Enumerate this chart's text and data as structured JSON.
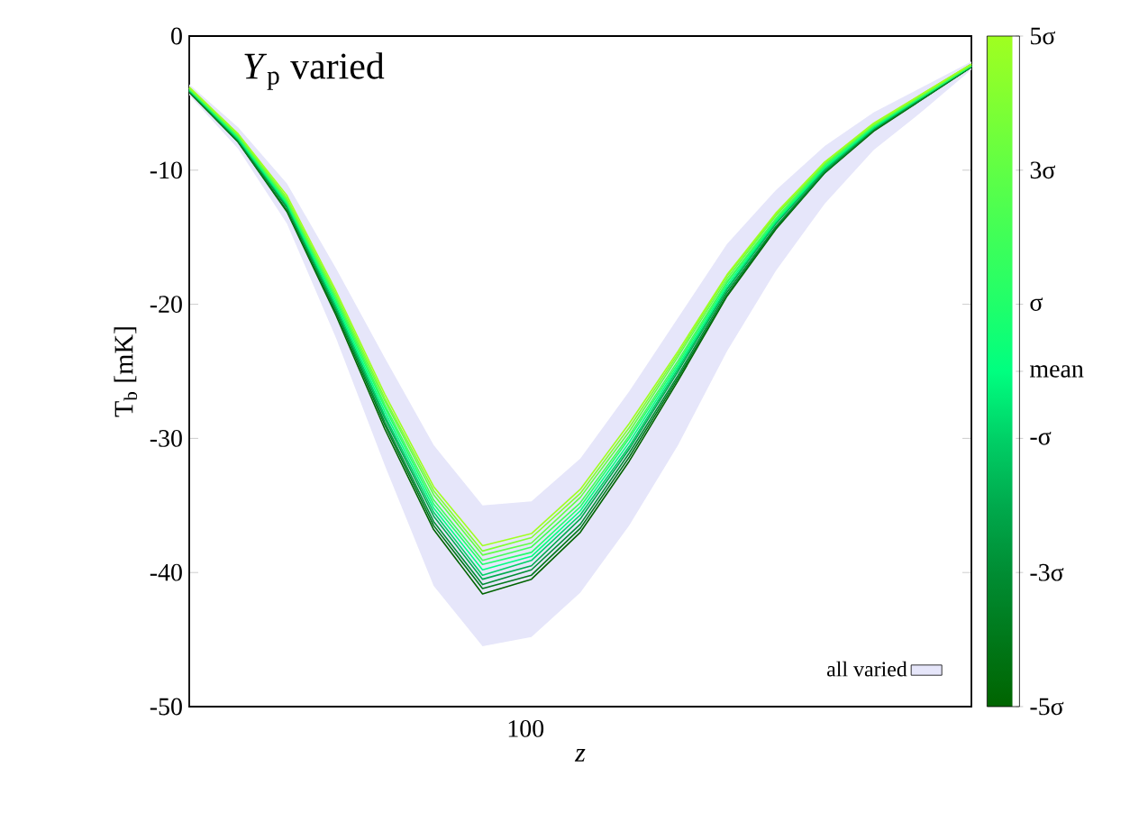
{
  "chart_data": {
    "type": "line",
    "annotations": [
      "*Y*$_{p}$ varied",
      "100"
    ],
    "xlabel": "z",
    "ylabel": "T$_{b}$ [mK]",
    "legend": "bottom right",
    "ylim": [
      -50,
      0
    ],
    "yticks": [
      -50,
      -40,
      -30,
      -20,
      -10,
      0
    ],
    "clim": [
      -5,
      5
    ],
    "cticks": [
      {
        "value": -5,
        "label": "-5σ"
      },
      {
        "value": -3,
        "label": "-3σ"
      },
      {
        "value": -1,
        "label": "-σ"
      },
      {
        "value": 0,
        "label": "mean"
      },
      {
        "value": 1,
        "label": "σ"
      },
      {
        "value": 3,
        "label": "3σ"
      },
      {
        "value": 5,
        "label": "5σ"
      }
    ],
    "categories": [
      null,
      null,
      null,
      null,
      null,
      null,
      null,
      null,
      null,
      null,
      null,
      null,
      null,
      null,
      null,
      null,
      null
    ],
    "series": [
      {
        "name": "all varied",
        "type": "area",
        "color": "#e6e6fa",
        "values": [
          null,
          null,
          null,
          null,
          null,
          null,
          null,
          null,
          null,
          null,
          null,
          null,
          null,
          null,
          null,
          null,
          null
        ],
        "lower": [
          -4.4,
          -8.4,
          -14.0,
          -22.5,
          -32.0,
          -41.0,
          -45.5,
          -44.8,
          -41.5,
          -36.5,
          -30.5,
          -23.5,
          -17.5,
          -12.5,
          -8.5,
          -5.6,
          -2.5
        ],
        "upper": [
          -3.6,
          -6.8,
          -11.0,
          -17.3,
          -24.0,
          -30.5,
          -35.0,
          -34.7,
          -31.5,
          -26.5,
          -21.0,
          -15.5,
          -11.5,
          -8.2,
          -5.7,
          -3.8,
          -1.9
        ]
      },
      {
        "color": "#006400",
        "values": [
          -4.2,
          -7.9,
          -13.1,
          -20.8,
          -29.3,
          -36.8,
          -41.6,
          -40.5,
          -37.0,
          -31.7,
          -25.7,
          -19.4,
          -14.4,
          -10.2,
          -7.1,
          -4.7,
          -2.3
        ]
      },
      {
        "color": "#00781a",
        "values": [
          -4.1,
          -7.9,
          -13.0,
          -20.6,
          -29.0,
          -36.5,
          -41.2,
          -40.2,
          -36.7,
          -31.4,
          -25.5,
          -19.3,
          -14.3,
          -10.2,
          -7.0,
          -4.7,
          -2.3
        ]
      },
      {
        "color": "#008d33",
        "values": [
          -4.1,
          -7.8,
          -12.8,
          -20.4,
          -28.8,
          -36.2,
          -40.9,
          -39.8,
          -36.4,
          -31.1,
          -25.3,
          -19.1,
          -14.2,
          -10.1,
          -7.0,
          -4.6,
          -2.3
        ]
      },
      {
        "color": "#00aa4d",
        "values": [
          -4.1,
          -7.7,
          -12.7,
          -20.3,
          -28.5,
          -35.8,
          -40.5,
          -39.5,
          -36.0,
          -30.8,
          -25.0,
          -18.9,
          -14.0,
          -10.0,
          -6.9,
          -4.6,
          -2.2
        ]
      },
      {
        "color": "#00d066",
        "values": [
          -4.0,
          -7.7,
          -12.6,
          -20.1,
          -28.3,
          -35.5,
          -40.2,
          -39.1,
          -35.7,
          -30.6,
          -24.8,
          -18.8,
          -13.9,
          -9.9,
          -6.9,
          -4.5,
          -2.2
        ]
      },
      {
        "color": "#00ff80",
        "values": [
          -4.0,
          -7.6,
          -12.5,
          -19.9,
          -28.0,
          -35.2,
          -39.8,
          -38.8,
          -35.4,
          -30.3,
          -24.6,
          -18.6,
          -13.8,
          -9.8,
          -6.8,
          -4.5,
          -2.2
        ]
      },
      {
        "color": "#20ff6a",
        "values": [
          -4.0,
          -7.5,
          -12.4,
          -19.7,
          -27.7,
          -34.9,
          -39.4,
          -38.5,
          -35.1,
          -30.0,
          -24.4,
          -18.4,
          -13.7,
          -9.7,
          -6.7,
          -4.5,
          -2.2
        ]
      },
      {
        "color": "#40ff58",
        "values": [
          -3.9,
          -7.5,
          -12.3,
          -19.5,
          -27.5,
          -34.6,
          -39.1,
          -38.1,
          -34.8,
          -29.8,
          -24.2,
          -18.3,
          -13.6,
          -9.6,
          -6.7,
          -4.4,
          -2.2
        ]
      },
      {
        "color": "#60ff45",
        "values": [
          -3.9,
          -7.4,
          -12.2,
          -19.4,
          -27.2,
          -34.2,
          -38.7,
          -37.8,
          -34.4,
          -29.5,
          -23.9,
          -18.1,
          -13.4,
          -9.5,
          -6.6,
          -4.4,
          -2.1
        ]
      },
      {
        "color": "#80ff32",
        "values": [
          -3.9,
          -7.3,
          -12.1,
          -19.2,
          -27.0,
          -33.9,
          -38.4,
          -37.4,
          -34.1,
          -29.2,
          -23.7,
          -17.9,
          -13.3,
          -9.4,
          -6.6,
          -4.3,
          -2.1
        ]
      },
      {
        "color": "#a0ff20",
        "values": [
          -3.8,
          -7.3,
          -11.9,
          -19.0,
          -26.7,
          -33.6,
          -38.0,
          -37.1,
          -33.8,
          -28.9,
          -23.5,
          -17.8,
          -13.2,
          -9.4,
          -6.5,
          -4.3,
          -2.1
        ]
      }
    ]
  }
}
